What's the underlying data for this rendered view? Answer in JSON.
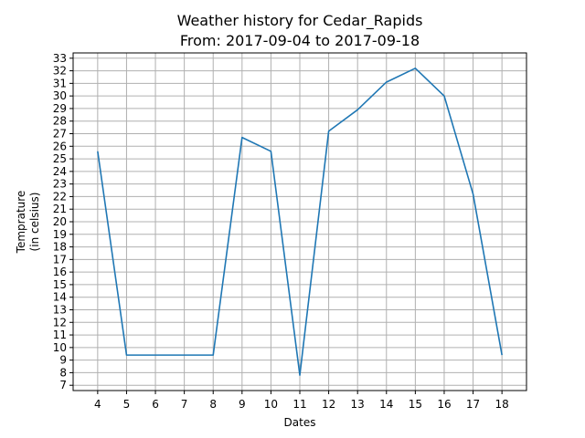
{
  "chart_data": {
    "type": "line",
    "title": "Weather history for Cedar_Rapids",
    "subtitle": "From: 2017-09-04 to 2017-09-18",
    "xlabel": "Dates",
    "ylabel": "Temprature",
    "ylabel2": "(in celsius)",
    "x": [
      4,
      5,
      6,
      7,
      8,
      9,
      10,
      11,
      12,
      13,
      14,
      15,
      16,
      17,
      18
    ],
    "series": [
      {
        "values": [
          25.6,
          9.4,
          9.4,
          9.4,
          9.4,
          26.7,
          25.6,
          7.8,
          27.2,
          28.9,
          31.1,
          32.2,
          30.0,
          22.2,
          9.4
        ]
      }
    ],
    "xticks": [
      4,
      5,
      6,
      7,
      8,
      9,
      10,
      11,
      12,
      13,
      14,
      15,
      16,
      17,
      18
    ],
    "yticks": [
      7,
      8,
      9,
      10,
      11,
      12,
      13,
      14,
      15,
      16,
      17,
      18,
      19,
      20,
      21,
      22,
      23,
      24,
      25,
      26,
      27,
      28,
      29,
      30,
      31,
      32,
      33
    ],
    "xlim": [
      3.15,
      18.85
    ],
    "ylim": [
      6.58,
      33.42
    ],
    "grid": true,
    "colors": {
      "line": "#1f77b4",
      "grid": "#b0b0b0"
    }
  }
}
